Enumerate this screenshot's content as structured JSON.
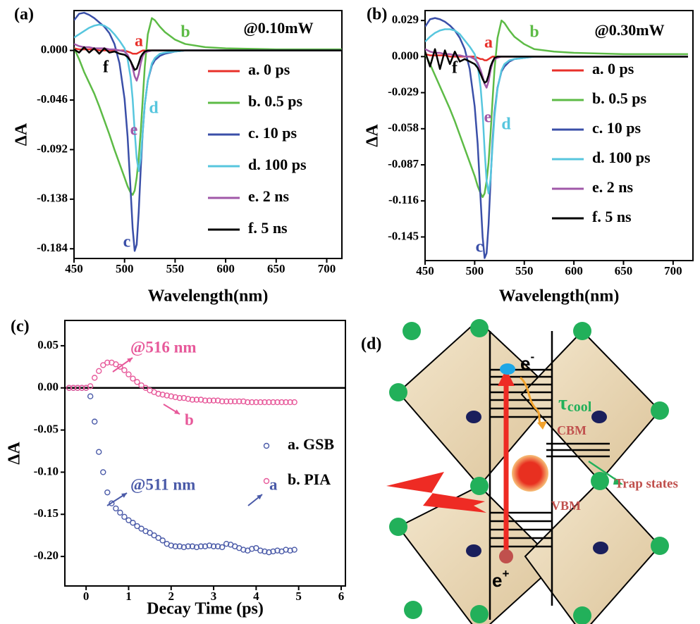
{
  "chart_data": [
    {
      "type": "line",
      "title": "(a)",
      "xlabel": "Wavelength(nm)",
      "ylabel": "ΔA",
      "note": "@0.10mW",
      "x": [
        450,
        455,
        460,
        465,
        470,
        475,
        480,
        485,
        490,
        495,
        500,
        503,
        506,
        508,
        510,
        512,
        514,
        516,
        518,
        520,
        523,
        527,
        530,
        535,
        540,
        550,
        560,
        580,
        600,
        650,
        700,
        715
      ],
      "xlim": [
        450,
        715
      ],
      "xticks": [
        450,
        500,
        550,
        600,
        650,
        700
      ],
      "ylim": [
        -0.193,
        0.037
      ],
      "yticks": [
        {
          "value": 0,
          "label": "0.000"
        },
        -0.046,
        -0.092,
        -0.138,
        -0.184
      ],
      "series": [
        {
          "name": "a. 0 ps",
          "color": "#e8302a",
          "values": [
            0.002,
            0.001,
            0.001,
            0.001,
            0.001,
            0,
            0,
            0,
            0,
            0,
            0,
            -0.001,
            -0.002,
            -0.003,
            -0.003,
            -0.003,
            -0.002,
            -0.001,
            0,
            0,
            0,
            0,
            0,
            0,
            0,
            0,
            0,
            0,
            0,
            0,
            0,
            0
          ]
        },
        {
          "name": "b. 0.5 ps",
          "color": "#5dbb46",
          "values": [
            0.002,
            -0.008,
            -0.02,
            -0.03,
            -0.04,
            -0.052,
            -0.065,
            -0.078,
            -0.092,
            -0.105,
            -0.118,
            -0.126,
            -0.132,
            -0.134,
            -0.13,
            -0.118,
            -0.1,
            -0.075,
            -0.045,
            -0.015,
            0.015,
            0.03,
            0.028,
            0.022,
            0.017,
            0.01,
            0.006,
            0.003,
            0.002,
            0.001,
            0.001,
            0.001
          ]
        },
        {
          "name": "c. 10 ps",
          "color": "#3a4fa8",
          "values": [
            0.028,
            0.034,
            0.035,
            0.033,
            0.03,
            0.026,
            0.022,
            0.016,
            0.006,
            -0.012,
            -0.045,
            -0.08,
            -0.13,
            -0.165,
            -0.186,
            -0.18,
            -0.15,
            -0.11,
            -0.075,
            -0.05,
            -0.028,
            -0.014,
            -0.009,
            -0.005,
            -0.003,
            -0.001,
            0,
            0,
            0,
            0,
            0,
            0
          ]
        },
        {
          "name": "d. 100 ps",
          "color": "#57c6de",
          "values": [
            0.012,
            0.015,
            0.018,
            0.021,
            0.023,
            0.024,
            0.023,
            0.02,
            0.015,
            0.009,
            0.002,
            -0.008,
            -0.025,
            -0.045,
            -0.075,
            -0.1,
            -0.112,
            -0.1,
            -0.075,
            -0.05,
            -0.028,
            -0.012,
            -0.007,
            -0.003,
            -0.002,
            -0.001,
            0,
            0,
            0,
            0,
            0,
            0
          ]
        },
        {
          "name": "e. 2 ns",
          "color": "#a058a8",
          "values": [
            0.006,
            0.004,
            0.003,
            0.003,
            0.002,
            0.002,
            0.002,
            0.001,
            0.001,
            0,
            -0.001,
            -0.004,
            -0.01,
            -0.016,
            -0.024,
            -0.028,
            -0.022,
            -0.012,
            -0.005,
            -0.002,
            -0.001,
            0,
            0,
            0,
            0,
            0,
            0,
            0,
            0,
            0,
            0,
            0
          ]
        },
        {
          "name": "f. 5 ns",
          "color": "#000000",
          "values": [
            0.001,
            -0.002,
            0.003,
            -0.002,
            0.002,
            -0.003,
            0.002,
            -0.002,
            -0.001,
            -0.003,
            -0.004,
            -0.006,
            -0.01,
            -0.014,
            -0.018,
            -0.017,
            -0.012,
            -0.006,
            -0.003,
            -0.001,
            0,
            0,
            0,
            0,
            0,
            0,
            0,
            0,
            0,
            0,
            0,
            0
          ]
        }
      ],
      "curve_labels": [
        "a",
        "b",
        "c",
        "d",
        "e",
        "f"
      ]
    },
    {
      "type": "line",
      "title": "(b)",
      "xlabel": "Wavelength(nm)",
      "ylabel": "ΔA",
      "note": "@0.30mW",
      "x": [
        450,
        455,
        460,
        465,
        470,
        475,
        480,
        485,
        490,
        495,
        500,
        503,
        506,
        508,
        510,
        512,
        514,
        516,
        518,
        520,
        523,
        527,
        530,
        535,
        540,
        550,
        560,
        580,
        600,
        650,
        700,
        715
      ],
      "xlim": [
        450,
        720
      ],
      "xticks": [
        450,
        500,
        550,
        600,
        650,
        700
      ],
      "ylim": [
        -0.164,
        0.037
      ],
      "yticks": [
        0.029,
        {
          "value": 0,
          "label": "0.000"
        },
        -0.029,
        -0.058,
        -0.087,
        -0.116,
        -0.145
      ],
      "series": [
        {
          "name": "a. 0 ps",
          "color": "#e8302a",
          "values": [
            0.002,
            0.001,
            0.001,
            0.001,
            0.001,
            0,
            0,
            0,
            0,
            0,
            0,
            -0.001,
            -0.002,
            -0.002,
            -0.003,
            -0.003,
            -0.002,
            -0.001,
            0,
            0,
            0,
            0,
            0,
            0,
            0,
            0,
            0,
            0,
            0,
            0,
            0,
            0
          ]
        },
        {
          "name": "b. 0.5 ps",
          "color": "#5dbb46",
          "values": [
            0.002,
            -0.006,
            -0.015,
            -0.024,
            -0.033,
            -0.042,
            -0.052,
            -0.063,
            -0.074,
            -0.085,
            -0.096,
            -0.104,
            -0.11,
            -0.113,
            -0.11,
            -0.1,
            -0.085,
            -0.062,
            -0.035,
            -0.01,
            0.015,
            0.029,
            0.027,
            0.021,
            0.016,
            0.01,
            0.006,
            0.004,
            0.003,
            0.002,
            0.002,
            0.002
          ]
        },
        {
          "name": "c. 10 ps",
          "color": "#3a4fa8",
          "values": [
            0.024,
            0.03,
            0.031,
            0.03,
            0.028,
            0.025,
            0.021,
            0.015,
            0.006,
            -0.01,
            -0.04,
            -0.07,
            -0.115,
            -0.145,
            -0.162,
            -0.158,
            -0.135,
            -0.1,
            -0.068,
            -0.045,
            -0.025,
            -0.012,
            -0.008,
            -0.004,
            -0.002,
            -0.001,
            0,
            0,
            0,
            0,
            0,
            0
          ]
        },
        {
          "name": "d. 100 ps",
          "color": "#57c6de",
          "values": [
            0.012,
            0.016,
            0.019,
            0.021,
            0.022,
            0.022,
            0.021,
            0.018,
            0.013,
            0.008,
            0.002,
            -0.007,
            -0.025,
            -0.045,
            -0.075,
            -0.1,
            -0.11,
            -0.098,
            -0.072,
            -0.048,
            -0.026,
            -0.011,
            -0.006,
            -0.003,
            -0.002,
            -0.001,
            0,
            0,
            0,
            0,
            0,
            0
          ]
        },
        {
          "name": "e. 2 ns",
          "color": "#a058a8",
          "values": [
            0.006,
            0.004,
            0.003,
            0.003,
            0.002,
            0.002,
            0.001,
            0.001,
            0,
            0,
            -0.002,
            -0.005,
            -0.011,
            -0.016,
            -0.022,
            -0.025,
            -0.02,
            -0.011,
            -0.005,
            -0.002,
            -0.001,
            0,
            0,
            0,
            0,
            0,
            0,
            0,
            0,
            0,
            0,
            0
          ]
        },
        {
          "name": "f. 5 ns",
          "color": "#000000",
          "values": [
            0.004,
            -0.008,
            0.006,
            -0.01,
            0.005,
            -0.006,
            0.004,
            -0.004,
            -0.002,
            -0.004,
            -0.006,
            -0.009,
            -0.014,
            -0.018,
            -0.021,
            -0.02,
            -0.015,
            -0.008,
            -0.004,
            -0.001,
            0,
            0,
            0,
            0,
            0,
            0,
            0,
            0,
            0,
            0,
            0,
            0
          ]
        }
      ],
      "curve_labels": [
        "a",
        "b",
        "c",
        "d",
        "e",
        "f"
      ]
    },
    {
      "type": "scatter",
      "title": "(c)",
      "xlabel": "Decay Time (ps)",
      "ylabel": "ΔA",
      "x": [
        -0.4,
        -0.3,
        -0.2,
        -0.1,
        0,
        0.1,
        0.2,
        0.3,
        0.4,
        0.5,
        0.6,
        0.7,
        0.8,
        0.9,
        1,
        1.1,
        1.2,
        1.3,
        1.4,
        1.5,
        1.6,
        1.7,
        1.8,
        1.9,
        2,
        2.1,
        2.2,
        2.3,
        2.4,
        2.5,
        2.6,
        2.7,
        2.8,
        2.9,
        3,
        3.1,
        3.2,
        3.3,
        3.4,
        3.5,
        3.6,
        3.7,
        3.8,
        3.9,
        4,
        4.1,
        4.2,
        4.3,
        4.4,
        4.5,
        4.6,
        4.7,
        4.8,
        4.9
      ],
      "xlim": [
        -0.5,
        6.1
      ],
      "xticks": [
        0,
        1,
        2,
        3,
        4,
        5,
        6
      ],
      "ylim": [
        -0.235,
        0.08
      ],
      "yticks": [
        0.05,
        {
          "value": 0,
          "label": "0.00"
        },
        -0.05,
        {
          "value": -0.1,
          "label": "-0.10"
        },
        -0.15,
        {
          "value": -0.2,
          "label": "-0.20"
        }
      ],
      "reference_line": 0,
      "series": [
        {
          "name": "a. GSB",
          "color": "#4a5aa8",
          "values": [
            0,
            0,
            0,
            0,
            0,
            -0.01,
            -0.04,
            -0.076,
            -0.1,
            -0.124,
            -0.137,
            -0.143,
            -0.148,
            -0.153,
            -0.157,
            -0.16,
            -0.164,
            -0.167,
            -0.17,
            -0.172,
            -0.175,
            -0.178,
            -0.181,
            -0.185,
            -0.187,
            -0.188,
            -0.188,
            -0.189,
            -0.188,
            -0.188,
            -0.189,
            -0.188,
            -0.188,
            -0.187,
            -0.188,
            -0.188,
            -0.189,
            -0.185,
            -0.186,
            -0.188,
            -0.19,
            -0.192,
            -0.193,
            -0.191,
            -0.19,
            -0.193,
            -0.194,
            -0.195,
            -0.194,
            -0.193,
            -0.194,
            -0.192,
            -0.193,
            -0.192
          ]
        },
        {
          "name": "b. PIA",
          "color": "#e7599a",
          "values": [
            0,
            0,
            0,
            0,
            0,
            0.002,
            0.012,
            0.02,
            0.027,
            0.03,
            0.03,
            0.028,
            0.025,
            0.021,
            0.016,
            0.011,
            0.007,
            0.003,
            0,
            -0.003,
            -0.005,
            -0.007,
            -0.008,
            -0.009,
            -0.01,
            -0.011,
            -0.012,
            -0.012,
            -0.013,
            -0.014,
            -0.014,
            -0.014,
            -0.015,
            -0.015,
            -0.015,
            -0.015,
            -0.016,
            -0.016,
            -0.016,
            -0.016,
            -0.016,
            -0.016,
            -0.017,
            -0.017,
            -0.017,
            -0.017,
            -0.017,
            -0.017,
            -0.017,
            -0.017,
            -0.017,
            -0.017,
            -0.017,
            -0.017
          ]
        }
      ],
      "annotations": [
        "@516 nm",
        "b",
        "@511 nm",
        "a"
      ]
    }
  ],
  "diagram": {
    "label": "(d)",
    "electron": "e",
    "electron_sign": "-",
    "tau": "τ",
    "tau_sub": "cool",
    "cbm": "CBM",
    "trap": "Trap states",
    "vbm": "VBM",
    "hole": "e",
    "hole_sign": "+"
  }
}
